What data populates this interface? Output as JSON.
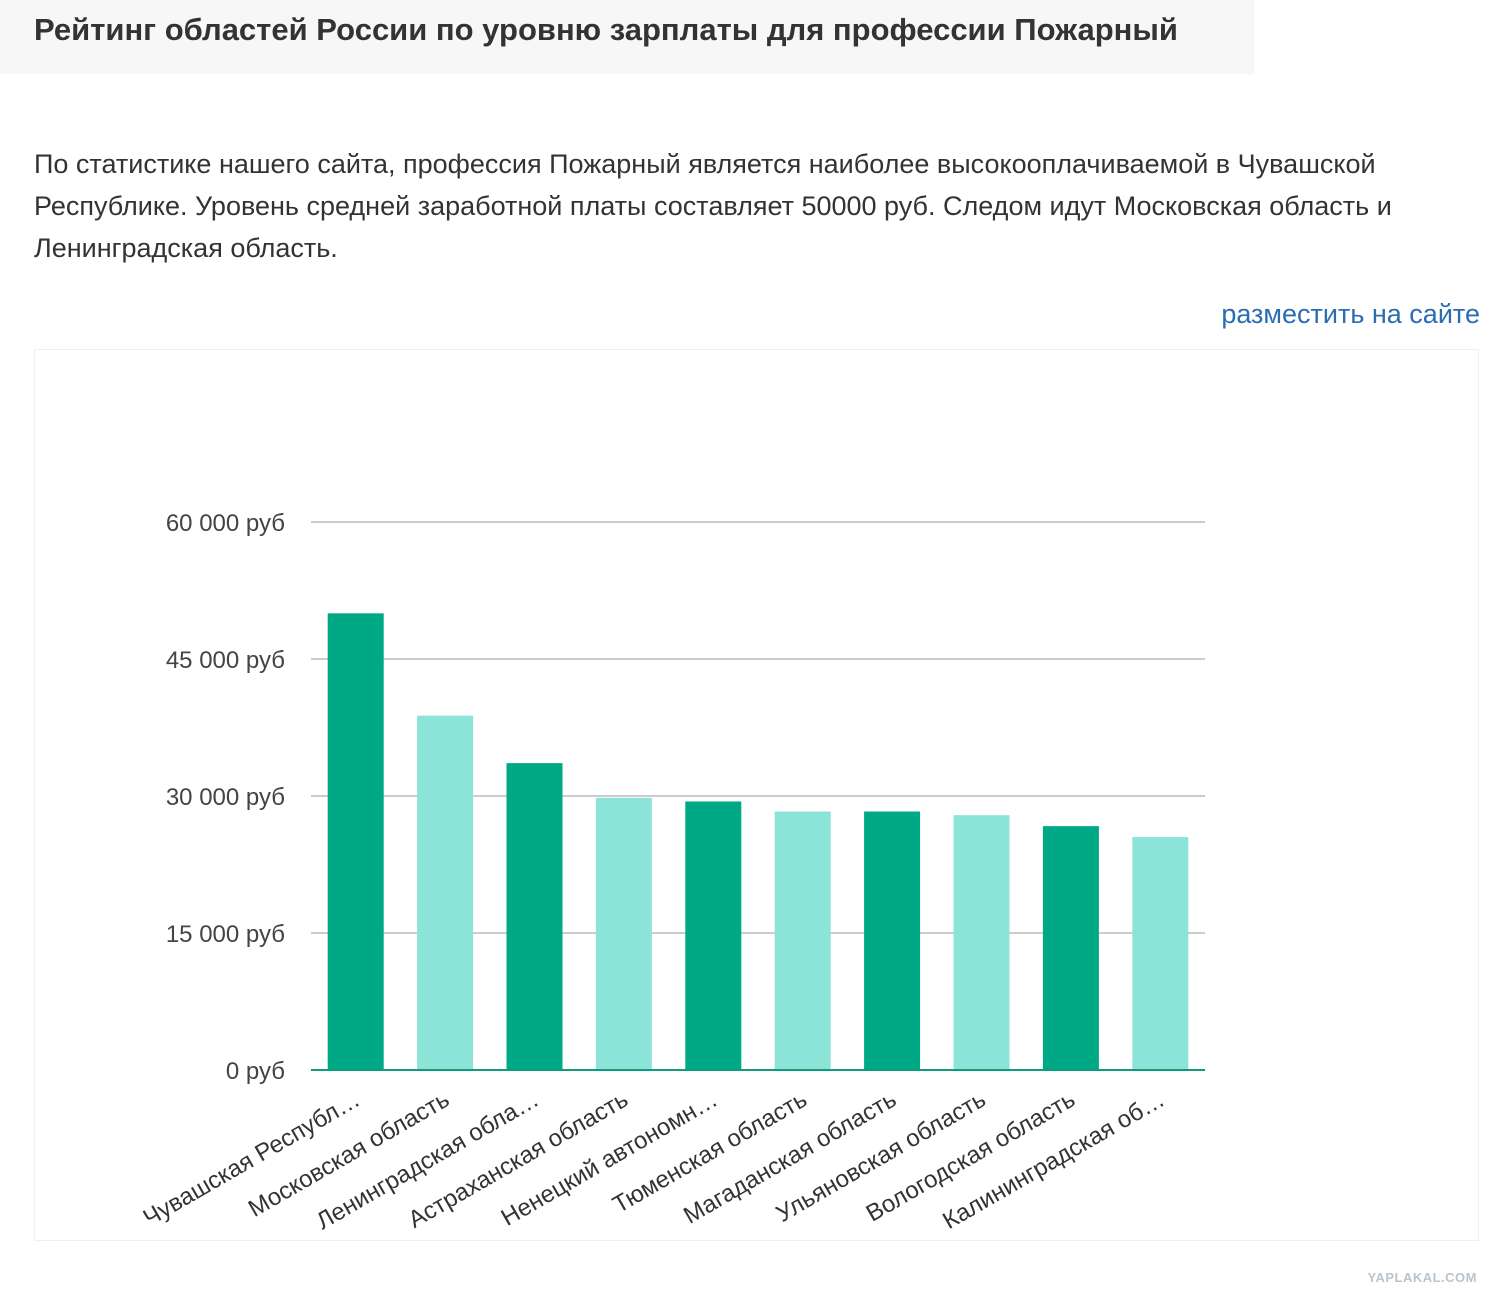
{
  "header": {
    "title": "Рейтинг областей России по уровню зарплаты для профессии Пожарный"
  },
  "description": {
    "text": "По статистике нашего сайта, профессия Пожарный является наиболее высокооплачиваемой в Чувашской Республике. Уровень средней заработной платы составляет 50000 руб. Следом идут Московская область и Ленинградская область."
  },
  "embed": {
    "label": "разместить на сайте"
  },
  "watermark": {
    "text": "YAPLAKAL.COM"
  },
  "colors": {
    "dark_bar": "#00a985",
    "light_bar": "#8ce3d8",
    "grid": "#cccccc",
    "axis": "#0f9b7c",
    "link": "#2a6db3"
  },
  "chart_data": {
    "type": "bar",
    "title": "",
    "xlabel": "",
    "ylabel": "",
    "ylim": [
      0,
      60000
    ],
    "y_ticks": [
      0,
      15000,
      30000,
      45000,
      60000
    ],
    "y_tick_labels": [
      "0 руб",
      "15 000 руб",
      "30 000 руб",
      "45 000 руб",
      "60 000 руб"
    ],
    "categories": [
      "Чувашская Республ…",
      "Московская область",
      "Ленинградская обла…",
      "Астраханская область",
      "Ненецкий автономн…",
      "Тюменская область",
      "Магаданская область",
      "Ульяновская область",
      "Вологодская область",
      "Калининградская об…"
    ],
    "values": [
      50000,
      38800,
      33600,
      29800,
      29400,
      28300,
      28300,
      27900,
      26700,
      25500
    ],
    "bar_color_pattern": [
      "dark",
      "light"
    ]
  }
}
